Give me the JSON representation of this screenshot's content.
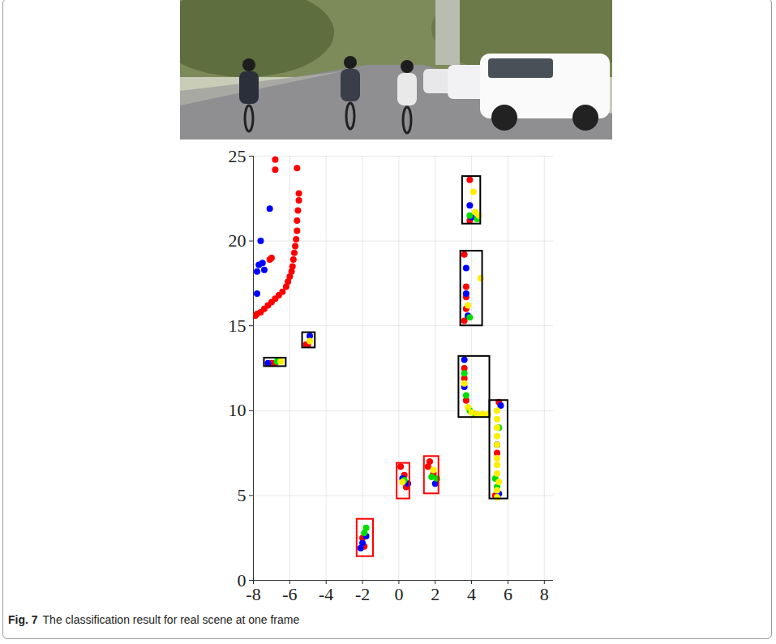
{
  "chart_data": {
    "type": "scatter",
    "caption": {
      "label": "Fig. 7",
      "text": "The classification result for real scene at one frame"
    },
    "xlim": [
      -8,
      8.5
    ],
    "ylim": [
      0,
      25
    ],
    "xticks": [
      -8,
      -6,
      -4,
      -2,
      0,
      2,
      4,
      6,
      8
    ],
    "yticks": [
      0,
      5,
      10,
      15,
      20,
      25
    ],
    "grid": true,
    "marker": "circle",
    "series": [
      {
        "color": "#ff0000",
        "x": [
          -7.9,
          -7.8,
          -7.6,
          -7.4,
          -7.2,
          -7.0,
          -6.8,
          -6.6,
          -6.4,
          -6.2,
          -6.1,
          -6.0,
          -5.9,
          -5.85,
          -5.8,
          -5.75,
          -5.7,
          -5.65,
          -5.6,
          -5.6,
          -5.55,
          -5.5,
          -5.5,
          -5.6,
          -6.8,
          -6.8,
          -7.0,
          -7.1,
          -7.0,
          -6.8,
          -5.1,
          -5.0,
          -1.9,
          -2.0,
          0.1,
          0.3,
          0.4,
          1.7,
          1.9,
          1.6,
          3.9,
          3.9,
          3.6,
          3.7,
          3.7,
          3.6,
          3.7,
          3.6,
          3.6,
          3.7,
          5.5,
          5.4,
          5.3
        ],
        "y": [
          15.6,
          15.7,
          15.8,
          16.0,
          16.2,
          16.4,
          16.6,
          16.8,
          17.0,
          17.3,
          17.6,
          17.9,
          18.2,
          18.5,
          18.9,
          19.3,
          19.7,
          20.1,
          20.6,
          21.2,
          21.8,
          22.4,
          22.8,
          24.3,
          24.8,
          24.2,
          19.0,
          18.9,
          12.8,
          12.8,
          13.9,
          13.9,
          2.0,
          2.5,
          6.7,
          6.2,
          5.5,
          7.0,
          6.3,
          6.7,
          23.6,
          21.2,
          19.2,
          17.3,
          16.7,
          15.3,
          16.0,
          12.5,
          11.9,
          10.6,
          10.5,
          7.5,
          5.0
        ]
      },
      {
        "color": "#0000ff",
        "x": [
          -7.6,
          -7.7,
          -7.5,
          -7.8,
          -7.4,
          -7.8,
          -7.1,
          -7.2,
          -4.9,
          -2.0,
          -2.1,
          -1.8,
          0.2,
          0.5,
          2.0,
          3.9,
          4.0,
          3.7,
          3.7,
          3.8,
          3.6,
          3.6,
          5.6,
          5.5,
          5.4
        ],
        "y": [
          20.0,
          18.6,
          18.7,
          18.2,
          18.3,
          16.9,
          21.9,
          12.8,
          14.4,
          2.2,
          1.9,
          2.6,
          6.0,
          5.7,
          5.7,
          22.1,
          21.4,
          18.4,
          16.9,
          15.6,
          13.0,
          11.4,
          10.3,
          5.1,
          8.0
        ]
      },
      {
        "color": "#00dd00",
        "x": [
          -6.7,
          -1.8,
          -1.9,
          0.3,
          1.8,
          2.1,
          4.3,
          3.9,
          3.9,
          3.6,
          3.7,
          4.2,
          3.9,
          5.4,
          5.3,
          5.5
        ],
        "y": [
          12.9,
          3.1,
          2.8,
          5.9,
          6.1,
          6.0,
          21.3,
          21.5,
          15.5,
          12.2,
          10.9,
          9.8,
          10.0,
          5.5,
          6.0,
          9.0
        ]
      },
      {
        "color": "#ffee00",
        "x": [
          -6.5,
          -4.9,
          0.2,
          1.9,
          4.1,
          4.2,
          4.4,
          4.5,
          3.8,
          3.8,
          4.0,
          4.3,
          4.6,
          4.9,
          3.6,
          5.4,
          5.4,
          5.4,
          5.4,
          5.4,
          5.4,
          5.4,
          5.4,
          5.5,
          5.4,
          5.4
        ],
        "y": [
          12.9,
          14.1,
          5.8,
          6.5,
          22.9,
          21.7,
          21.5,
          17.8,
          16.2,
          10.2,
          9.9,
          9.8,
          9.8,
          9.8,
          11.6,
          10.0,
          9.5,
          9.0,
          8.5,
          8.0,
          7.2,
          6.8,
          6.3,
          5.8,
          5.3,
          4.9
        ]
      }
    ],
    "boxes": [
      {
        "color": "#ff0000",
        "x0": -2.3,
        "x1": -1.4,
        "y0": 1.4,
        "y1": 3.6
      },
      {
        "color": "#ff0000",
        "x0": -0.1,
        "x1": 0.6,
        "y0": 4.8,
        "y1": 6.9
      },
      {
        "color": "#ff0000",
        "x0": 1.4,
        "x1": 2.2,
        "y0": 5.1,
        "y1": 7.3
      },
      {
        "color": "#000000",
        "x0": -7.4,
        "x1": -6.2,
        "y0": 12.6,
        "y1": 13.1
      },
      {
        "color": "#000000",
        "x0": -5.3,
        "x1": -4.6,
        "y0": 13.7,
        "y1": 14.6
      },
      {
        "color": "#000000",
        "x0": 3.5,
        "x1": 4.5,
        "y0": 21.0,
        "y1": 23.8
      },
      {
        "color": "#000000",
        "x0": 3.4,
        "x1": 4.6,
        "y0": 15.0,
        "y1": 19.4
      },
      {
        "color": "#000000",
        "x0": 3.3,
        "x1": 5.0,
        "y0": 9.6,
        "y1": 13.2
      },
      {
        "color": "#000000",
        "x0": 5.0,
        "x1": 6.0,
        "y0": 4.8,
        "y1": 10.6
      }
    ]
  }
}
